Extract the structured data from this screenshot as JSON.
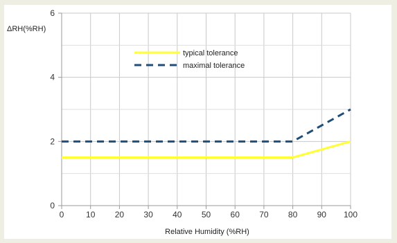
{
  "chart_data": {
    "type": "line",
    "xlabel": "Relative Humidity (%RH)",
    "ylabel": "ΔRH(%RH)",
    "xlim": [
      0,
      100
    ],
    "ylim": [
      0,
      6
    ],
    "x_ticks": [
      "0",
      "10",
      "20",
      "30",
      "40",
      "50",
      "60",
      "70",
      "80",
      "90",
      "100"
    ],
    "y_ticks": [
      "0",
      "2",
      "4",
      "6"
    ],
    "grid": true,
    "legend_position": "top-center",
    "series": [
      {
        "name": "typical tolerance",
        "color": "#ffff33",
        "style": "solid",
        "x": [
          0,
          80,
          100
        ],
        "y": [
          1.5,
          1.5,
          2.0
        ]
      },
      {
        "name": "maximal tolerance",
        "color": "#1f4e79",
        "style": "dashed",
        "x": [
          0,
          80,
          100
        ],
        "y": [
          2.0,
          2.0,
          3.0
        ]
      }
    ]
  }
}
